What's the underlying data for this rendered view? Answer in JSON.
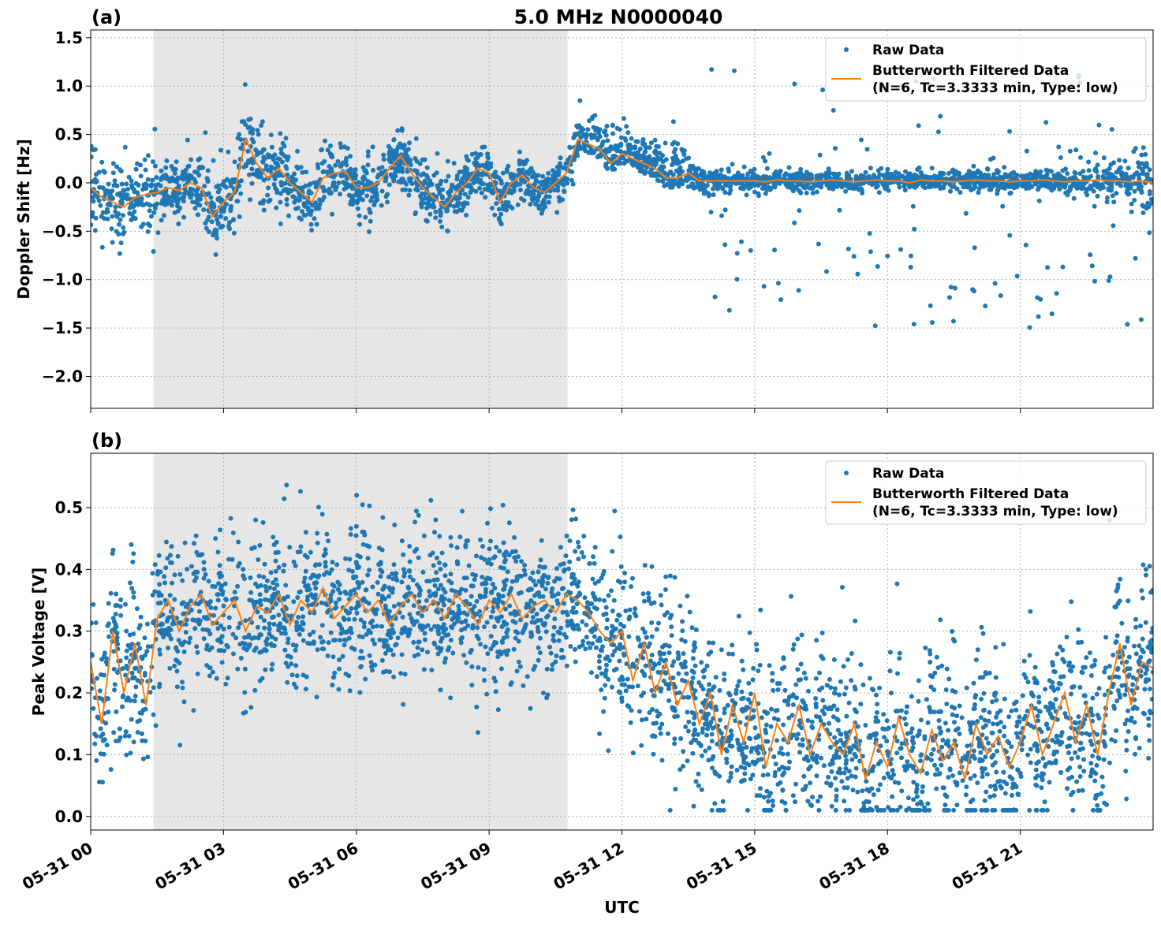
{
  "title": "5.0 MHz N0000040",
  "colors": {
    "raw": "#1f77b4",
    "filtered": "#ff7f0e",
    "shade": "#e6e6e6"
  },
  "chart_data": [
    {
      "type": "scatter",
      "panel_label": "(a)",
      "ylabel": "Doppler Shift [Hz]",
      "xlabel": "",
      "xlim_hours": [
        0,
        24
      ],
      "ylim": [
        -2.33,
        1.58
      ],
      "yticks": [
        1.5,
        1.0,
        0.5,
        0.0,
        -0.5,
        -1.0,
        -1.5,
        -2.0
      ],
      "ytick_labels": [
        "1.5",
        "1.0",
        "0.5",
        "0.0",
        "−0.5",
        "−1.0",
        "−1.5",
        "−2.0"
      ],
      "grid": true,
      "legend_position": "top-right",
      "legend": [
        "Raw Data",
        "Butterworth Filtered Data",
        "(N=6, Tc=3.3333 min, Type: low)"
      ],
      "shaded_span_hours": [
        1.42,
        10.77
      ],
      "filtered_step_hours": 0.25,
      "filtered_values": [
        -0.05,
        -0.15,
        -0.2,
        -0.25,
        -0.15,
        -0.12,
        -0.1,
        -0.05,
        -0.08,
        0.0,
        -0.05,
        -0.35,
        -0.2,
        -0.1,
        0.45,
        0.2,
        0.05,
        0.15,
        0.0,
        -0.1,
        -0.2,
        0.05,
        0.1,
        0.12,
        -0.05,
        -0.05,
        0.0,
        0.15,
        0.28,
        0.1,
        -0.05,
        -0.15,
        -0.25,
        -0.1,
        0.0,
        0.15,
        0.1,
        -0.2,
        0.0,
        0.08,
        -0.05,
        -0.1,
        0.0,
        0.1,
        0.45,
        0.4,
        0.35,
        0.2,
        0.3,
        0.25,
        0.2,
        0.15,
        0.05,
        0.05,
        0.1,
        0.02,
        0.02,
        0.02,
        0.02,
        0.02,
        0.02,
        0.01,
        0.03,
        0.02,
        0.02,
        0.01,
        0.02,
        0.03,
        0.02,
        0.01,
        0.02,
        0.03,
        0.02,
        0.02,
        0.0,
        0.03,
        0.02,
        0.02,
        0.01,
        0.02,
        0.03,
        0.02,
        0.02,
        0.01,
        0.02,
        0.02,
        0.03,
        0.02,
        0.01,
        0.02,
        0.02,
        0.03,
        0.02,
        0.02,
        0.01,
        0.02,
        0.0
      ],
      "raw_spread_hourly": [
        0.2,
        0.2,
        0.15,
        0.22,
        0.2,
        0.15,
        0.15,
        0.15,
        0.15,
        0.12,
        0.12,
        0.15,
        0.2,
        0.15,
        0.08,
        0.05,
        0.05,
        0.05,
        0.05,
        0.05,
        0.05,
        0.05,
        0.05,
        0.1,
        0.15
      ],
      "raw_outlier_range_after_14h": [
        -1.5,
        1.2
      ]
    },
    {
      "type": "scatter",
      "panel_label": "(b)",
      "ylabel": "Peak Voltage [V]",
      "xlabel": "UTC",
      "xlim_hours": [
        0,
        24
      ],
      "ylim": [
        -0.022,
        0.588
      ],
      "yticks": [
        0.5,
        0.4,
        0.3,
        0.2,
        0.1,
        0.0
      ],
      "ytick_labels": [
        "0.5",
        "0.4",
        "0.3",
        "0.2",
        "0.1",
        "0.0"
      ],
      "xticks_hours": [
        0,
        3,
        6,
        9,
        12,
        15,
        18,
        21
      ],
      "xtick_labels": [
        "05-31 00",
        "05-31 03",
        "05-31 06",
        "05-31 09",
        "05-31 12",
        "05-31 15",
        "05-31 18",
        "05-31 21"
      ],
      "grid": true,
      "legend_position": "top-right",
      "legend": [
        "Raw Data",
        "Butterworth Filtered Data",
        "(N=6, Tc=3.3333 min, Type: low)"
      ],
      "shaded_span_hours": [
        1.42,
        10.77
      ],
      "filtered_step_hours": 0.25,
      "filtered_values": [
        0.25,
        0.15,
        0.3,
        0.2,
        0.28,
        0.18,
        0.32,
        0.35,
        0.3,
        0.34,
        0.36,
        0.31,
        0.33,
        0.35,
        0.3,
        0.34,
        0.33,
        0.36,
        0.31,
        0.35,
        0.33,
        0.37,
        0.32,
        0.34,
        0.36,
        0.33,
        0.35,
        0.31,
        0.34,
        0.36,
        0.33,
        0.35,
        0.32,
        0.36,
        0.34,
        0.31,
        0.35,
        0.33,
        0.36,
        0.32,
        0.34,
        0.35,
        0.33,
        0.36,
        0.35,
        0.33,
        0.3,
        0.28,
        0.3,
        0.22,
        0.28,
        0.2,
        0.25,
        0.18,
        0.22,
        0.15,
        0.2,
        0.1,
        0.18,
        0.12,
        0.2,
        0.08,
        0.15,
        0.12,
        0.18,
        0.1,
        0.15,
        0.12,
        0.1,
        0.15,
        0.06,
        0.12,
        0.08,
        0.16,
        0.1,
        0.07,
        0.14,
        0.09,
        0.12,
        0.06,
        0.15,
        0.1,
        0.13,
        0.08,
        0.12,
        0.18,
        0.1,
        0.15,
        0.2,
        0.12,
        0.18,
        0.1,
        0.2,
        0.28,
        0.18,
        0.25,
        0.24
      ],
      "raw_spread_hourly": [
        0.07,
        0.07,
        0.06,
        0.06,
        0.06,
        0.06,
        0.06,
        0.06,
        0.06,
        0.06,
        0.06,
        0.06,
        0.07,
        0.07,
        0.07,
        0.07,
        0.07,
        0.07,
        0.07,
        0.07,
        0.07,
        0.07,
        0.07,
        0.07,
        0.07
      ]
    }
  ]
}
